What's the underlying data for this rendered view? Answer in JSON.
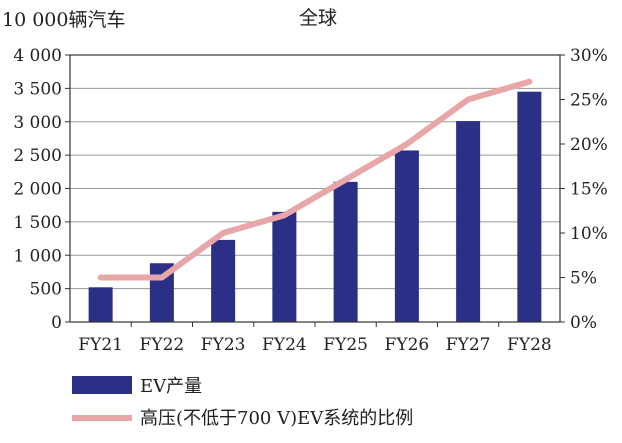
{
  "chart_data": {
    "type": "bar",
    "title": "全球",
    "ylabel": "10 000辆汽车",
    "categories": [
      "FY21",
      "FY22",
      "FY23",
      "FY24",
      "FY25",
      "FY26",
      "FY27",
      "FY28"
    ],
    "ylim": [
      0,
      4000
    ],
    "yticks": [
      "0",
      "500",
      "1 000",
      "1 500",
      "2 000",
      "2 500",
      "3 000",
      "3 500",
      "4 000"
    ],
    "y2lim": [
      0,
      30
    ],
    "y2ticks": [
      "0%",
      "5%",
      "10%",
      "15%",
      "20%",
      "25%",
      "30%"
    ],
    "grid": "horizontal",
    "legend_position": "bottom-left",
    "series": [
      {
        "name": "EV产量",
        "type": "bar",
        "axis": "left",
        "color": "#2b2f86",
        "values": [
          520,
          880,
          1230,
          1650,
          2100,
          2570,
          3010,
          3450
        ]
      },
      {
        "name": "高压(不低于700 V)EV系统的比例",
        "type": "line",
        "axis": "right",
        "color": "#e8a6a9",
        "values": [
          5,
          5,
          10,
          12,
          16,
          20,
          25,
          27
        ]
      }
    ]
  }
}
